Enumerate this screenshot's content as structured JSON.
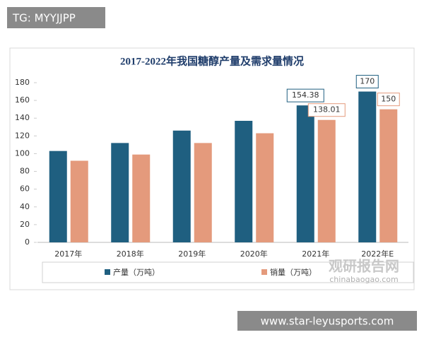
{
  "overlay": {
    "tag": "TG: MYYJJPP",
    "footer": "www.star-leyusports.com",
    "watermark": "观研报告网",
    "watermark_url": "chinabaogao.com"
  },
  "chart_data": {
    "type": "bar",
    "title": "2017-2022年我国糖醇产量及需求量情况",
    "categories": [
      "2017年",
      "2018年",
      "2019年",
      "2020年",
      "2021年",
      "2022年E"
    ],
    "series": [
      {
        "name": "产量（万吨）",
        "color": "#1f5f80",
        "values": [
          103,
          112,
          126,
          137,
          154.38,
          170
        ]
      },
      {
        "name": "销量（万吨）",
        "color": "#e49a7c",
        "values": [
          92,
          99,
          112,
          123,
          138.01,
          150
        ]
      }
    ],
    "labeled_points": [
      4,
      5
    ],
    "ylim": [
      0,
      180
    ],
    "yticks": [
      0,
      20,
      40,
      60,
      80,
      100,
      120,
      140,
      160,
      180
    ],
    "legend": "bottom"
  }
}
